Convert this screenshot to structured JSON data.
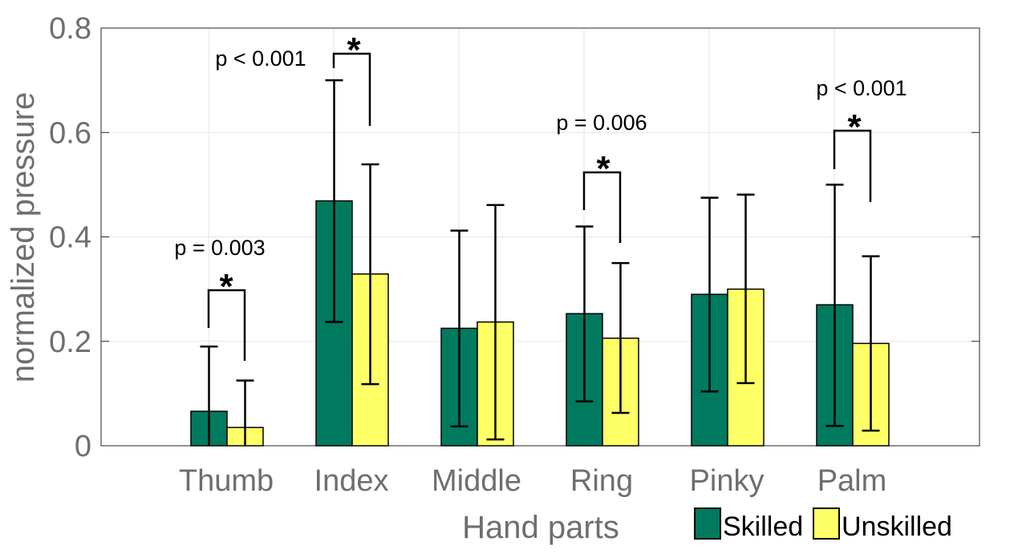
{
  "chart_data": {
    "type": "bar",
    "xlabel": "Hand parts",
    "ylabel": "normalized pressure",
    "ylim": [
      0,
      0.8
    ],
    "yticks": [
      "0",
      "0.2",
      "0.4",
      "0.6",
      "0.8"
    ],
    "grid": true,
    "legend_position": "bottom-right",
    "categories": [
      "Thumb",
      "Index",
      "Middle",
      "Ring",
      "Pinky",
      "Palm"
    ],
    "series": [
      {
        "name": "Skilled",
        "color": "#007a5e",
        "values": [
          0.066,
          0.469,
          0.225,
          0.253,
          0.29,
          0.27
        ],
        "error_low": [
          0.0,
          0.237,
          0.037,
          0.085,
          0.104,
          0.038
        ],
        "error_high": [
          0.19,
          0.7,
          0.412,
          0.42,
          0.475,
          0.5
        ]
      },
      {
        "name": "Unskilled",
        "color": "#ffff66",
        "values": [
          0.035,
          0.329,
          0.237,
          0.206,
          0.3,
          0.196
        ],
        "error_low": [
          0.0,
          0.118,
          0.012,
          0.063,
          0.12,
          0.029
        ],
        "error_high": [
          0.125,
          0.539,
          0.461,
          0.35,
          0.481,
          0.363
        ]
      }
    ],
    "annotations": [
      {
        "category": "Thumb",
        "label": "p = 0.003",
        "star": "*"
      },
      {
        "category": "Index",
        "label": "p < 0.001",
        "star": "*"
      },
      {
        "category": "Ring",
        "label": "p = 0.006",
        "star": "*"
      },
      {
        "category": "Palm",
        "label": "p < 0.001",
        "star": "*"
      }
    ]
  }
}
